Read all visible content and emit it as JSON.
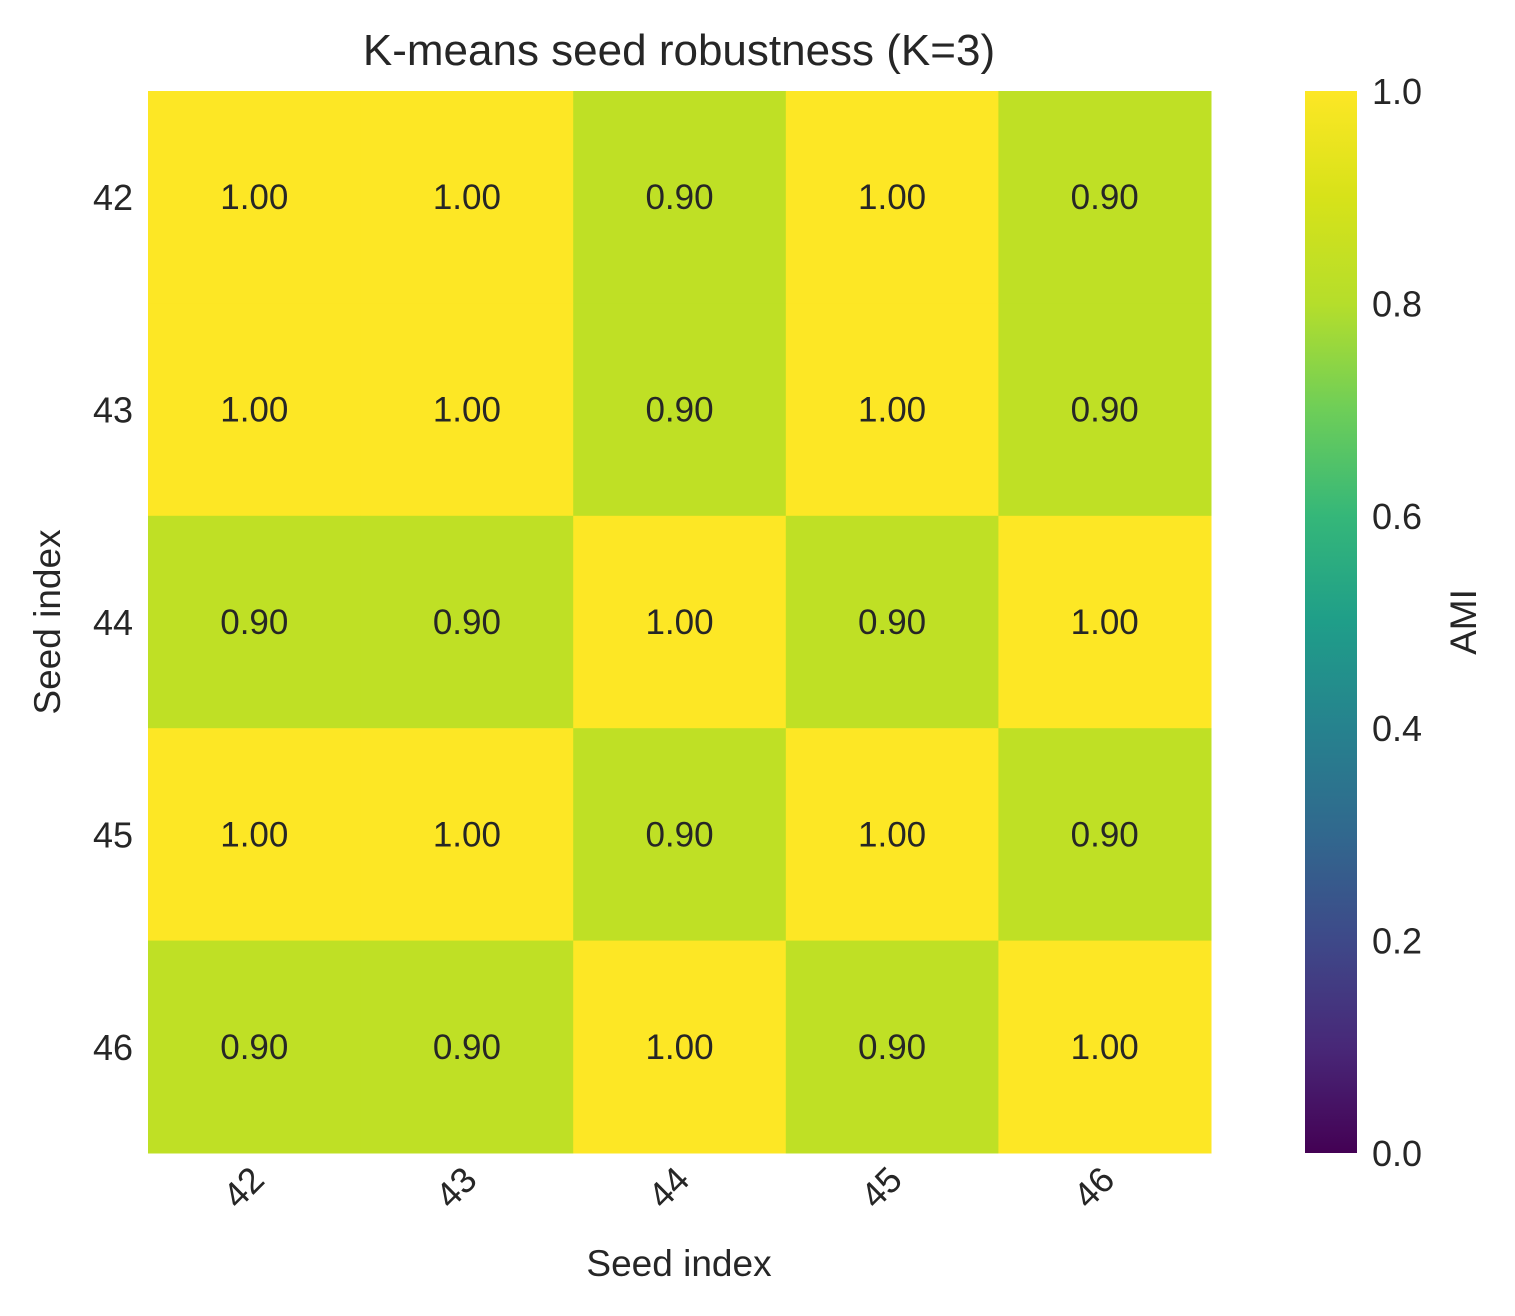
{
  "chart_data": {
    "type": "heatmap",
    "title": "K-means seed robustness (K=3)",
    "xlabel": "Seed index",
    "ylabel": "Seed index",
    "x_categories": [
      "42",
      "43",
      "44",
      "45",
      "46"
    ],
    "y_categories": [
      "42",
      "43",
      "44",
      "45",
      "46"
    ],
    "values": [
      [
        1.0,
        1.0,
        0.9,
        1.0,
        0.9
      ],
      [
        1.0,
        1.0,
        0.9,
        1.0,
        0.9
      ],
      [
        0.9,
        0.9,
        1.0,
        0.9,
        1.0
      ],
      [
        1.0,
        1.0,
        0.9,
        1.0,
        0.9
      ],
      [
        0.9,
        0.9,
        1.0,
        0.9,
        1.0
      ]
    ],
    "cell_labels": [
      [
        "1.00",
        "1.00",
        "0.90",
        "1.00",
        "0.90"
      ],
      [
        "1.00",
        "1.00",
        "0.90",
        "1.00",
        "0.90"
      ],
      [
        "0.90",
        "0.90",
        "1.00",
        "0.90",
        "1.00"
      ],
      [
        "1.00",
        "1.00",
        "0.90",
        "1.00",
        "0.90"
      ],
      [
        "0.90",
        "0.90",
        "1.00",
        "0.90",
        "1.00"
      ]
    ],
    "colorbar": {
      "label": "AMI",
      "range": [
        0.0,
        1.0
      ],
      "ticks": [
        "0.0",
        "0.2",
        "0.4",
        "0.6",
        "0.8",
        "1.0"
      ],
      "colormap": "viridis"
    },
    "grid": false
  }
}
